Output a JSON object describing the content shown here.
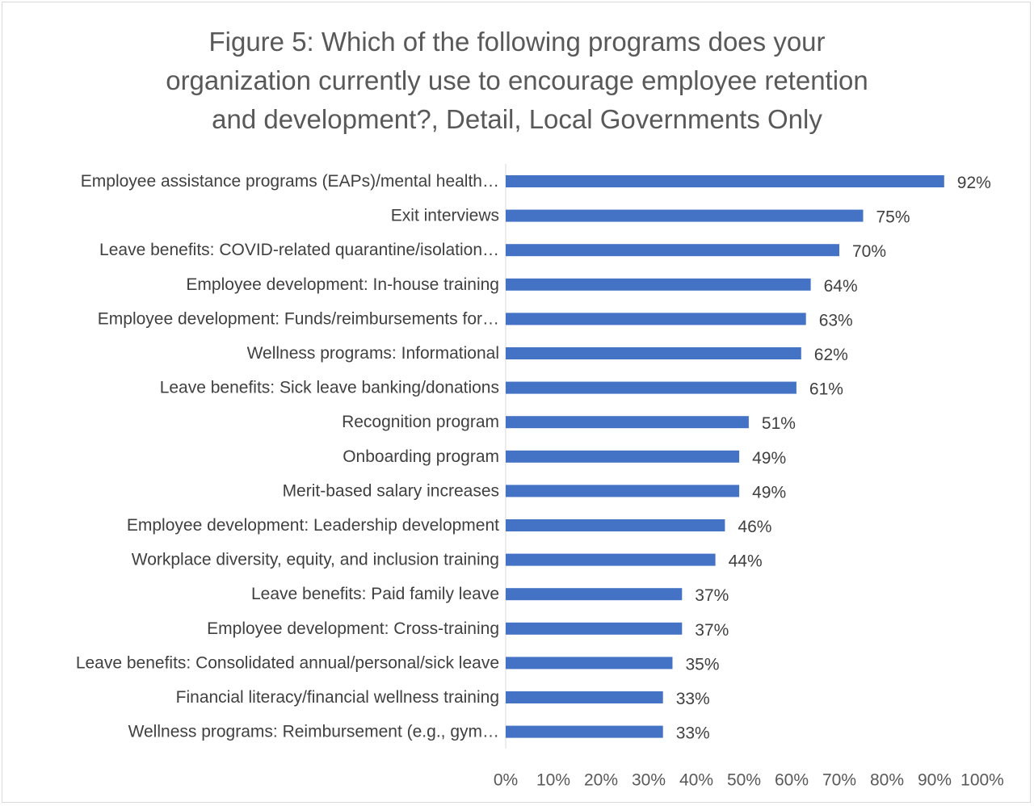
{
  "chart_data": {
    "type": "bar",
    "orientation": "horizontal",
    "title_lines": [
      "Figure 5: Which of the following programs does your",
      "organization currently use to encourage employee retention",
      "and development?, Detail, Local Governments Only"
    ],
    "categories": [
      "Employee assistance programs (EAPs)/mental health…",
      "Exit interviews",
      "Leave benefits: COVID-related quarantine/isolation…",
      "Employee development: In-house training",
      "Employee development: Funds/reimbursements for…",
      "Wellness programs: Informational",
      "Leave benefits: Sick leave banking/donations",
      "Recognition program",
      "Onboarding program",
      "Merit-based salary increases",
      "Employee development: Leadership development",
      "Workplace diversity, equity, and inclusion training",
      "Leave benefits: Paid family leave",
      "Employee development: Cross-training",
      "Leave benefits: Consolidated annual/personal/sick leave",
      "Financial literacy/financial wellness training",
      "Wellness programs: Reimbursement (e.g., gym…"
    ],
    "values": [
      92,
      75,
      70,
      64,
      63,
      62,
      61,
      51,
      49,
      49,
      46,
      44,
      37,
      37,
      35,
      33,
      33
    ],
    "value_labels": [
      "92%",
      "75%",
      "70%",
      "64%",
      "63%",
      "62%",
      "61%",
      "51%",
      "49%",
      "49%",
      "46%",
      "44%",
      "37%",
      "37%",
      "35%",
      "33%",
      "33%"
    ],
    "xlim": [
      0,
      100
    ],
    "x_ticks": [
      0,
      10,
      20,
      30,
      40,
      50,
      60,
      70,
      80,
      90,
      100
    ],
    "x_tick_labels": [
      "0%",
      "10%",
      "20%",
      "30%",
      "40%",
      "50%",
      "60%",
      "70%",
      "80%",
      "90%",
      "100%"
    ],
    "bar_color": "#4472C4",
    "grid": false
  }
}
